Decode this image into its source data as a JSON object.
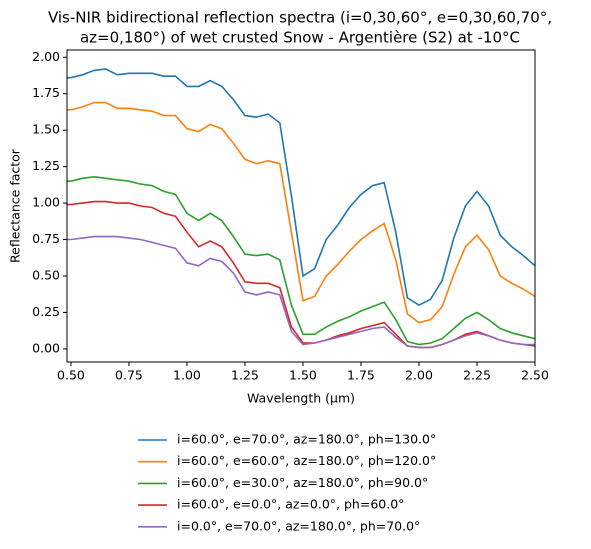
{
  "chart_data": {
    "type": "line",
    "title": [
      "Vis-NIR bidirectional reflection spectra (i=0,30,60°, e=0,30,60,70°,",
      "az=0,180°) of wet crusted Snow - Argentière (S2) at -10°C"
    ],
    "xlabel": "Wavelength (μm)",
    "ylabel": "Reflectance factor",
    "xlim": [
      0.483,
      2.5
    ],
    "ylim": [
      -0.09,
      2.05
    ],
    "xticks": [
      {
        "value": 0.5,
        "label": "0.50"
      },
      {
        "value": 0.75,
        "label": "0.75"
      },
      {
        "value": 1.0,
        "label": "1.00"
      },
      {
        "value": 1.25,
        "label": "1.25"
      },
      {
        "value": 1.5,
        "label": "1.50"
      },
      {
        "value": 1.75,
        "label": "1.75"
      },
      {
        "value": 2.0,
        "label": "2.00"
      },
      {
        "value": 2.25,
        "label": "2.25"
      },
      {
        "value": 2.5,
        "label": "2.50"
      }
    ],
    "yticks": [
      {
        "value": 0,
        "label": "0.00"
      },
      {
        "value": 0.25,
        "label": "0.25"
      },
      {
        "value": 0.5,
        "label": "0.50"
      },
      {
        "value": 0.75,
        "label": "0.75"
      },
      {
        "value": 1.0,
        "label": "1.00"
      },
      {
        "value": 1.25,
        "label": "1.25"
      },
      {
        "value": 1.5,
        "label": "1.50"
      },
      {
        "value": 1.75,
        "label": "1.75"
      },
      {
        "value": 2.0,
        "label": "2.00"
      }
    ],
    "x": [
      0.48,
      0.5,
      0.55,
      0.6,
      0.65,
      0.7,
      0.75,
      0.8,
      0.85,
      0.9,
      0.95,
      1.0,
      1.05,
      1.1,
      1.15,
      1.2,
      1.25,
      1.3,
      1.35,
      1.4,
      1.45,
      1.5,
      1.55,
      1.6,
      1.65,
      1.7,
      1.75,
      1.8,
      1.85,
      1.9,
      1.95,
      2.0,
      2.05,
      2.1,
      2.15,
      2.2,
      2.25,
      2.3,
      2.35,
      2.4,
      2.45,
      2.5
    ],
    "series": [
      {
        "name": "i=60.0°, e=70.0°, az=180.0°, ph=130.0°",
        "color": "#1f77b4",
        "values": [
          1.86,
          1.86,
          1.88,
          1.91,
          1.92,
          1.88,
          1.89,
          1.89,
          1.89,
          1.87,
          1.87,
          1.8,
          1.8,
          1.84,
          1.8,
          1.71,
          1.6,
          1.59,
          1.61,
          1.55,
          1.05,
          0.5,
          0.55,
          0.75,
          0.85,
          0.97,
          1.06,
          1.12,
          1.14,
          0.8,
          0.35,
          0.3,
          0.34,
          0.47,
          0.76,
          0.98,
          1.08,
          0.98,
          0.78,
          0.7,
          0.64,
          0.57
        ]
      },
      {
        "name": "i=60.0°, e=60.0°, az=180.0°, ph=120.0°",
        "color": "#ff7f0e",
        "values": [
          1.64,
          1.64,
          1.66,
          1.69,
          1.69,
          1.65,
          1.65,
          1.64,
          1.63,
          1.6,
          1.6,
          1.51,
          1.49,
          1.54,
          1.51,
          1.41,
          1.3,
          1.27,
          1.29,
          1.27,
          0.8,
          0.33,
          0.36,
          0.5,
          0.58,
          0.67,
          0.75,
          0.81,
          0.86,
          0.61,
          0.24,
          0.18,
          0.2,
          0.29,
          0.51,
          0.7,
          0.78,
          0.68,
          0.5,
          0.45,
          0.41,
          0.36
        ]
      },
      {
        "name": "i=60.0°, e=30.0°, az=180.0°, ph=90.0°",
        "color": "#2ca02c",
        "values": [
          1.15,
          1.15,
          1.17,
          1.18,
          1.17,
          1.16,
          1.15,
          1.13,
          1.12,
          1.08,
          1.06,
          0.93,
          0.88,
          0.93,
          0.88,
          0.77,
          0.65,
          0.64,
          0.65,
          0.61,
          0.3,
          0.1,
          0.1,
          0.15,
          0.19,
          0.22,
          0.26,
          0.29,
          0.32,
          0.2,
          0.05,
          0.03,
          0.04,
          0.07,
          0.14,
          0.21,
          0.25,
          0.2,
          0.14,
          0.11,
          0.09,
          0.07
        ]
      },
      {
        "name": "i=60.0°, e=0.0°, az=0.0°, ph=60.0°",
        "color": "#d62728",
        "values": [
          0.99,
          0.99,
          1.0,
          1.01,
          1.01,
          1.0,
          1.0,
          0.98,
          0.97,
          0.93,
          0.91,
          0.8,
          0.7,
          0.74,
          0.7,
          0.59,
          0.46,
          0.45,
          0.45,
          0.42,
          0.15,
          0.04,
          0.04,
          0.06,
          0.09,
          0.11,
          0.14,
          0.16,
          0.18,
          0.1,
          0.02,
          0.01,
          0.01,
          0.03,
          0.06,
          0.1,
          0.12,
          0.09,
          0.06,
          0.04,
          0.03,
          0.02
        ]
      },
      {
        "name": "i=0.0°, e=70.0°, az=180.0°, ph=70.0°",
        "color": "#9467bd",
        "values": [
          0.75,
          0.75,
          0.76,
          0.77,
          0.77,
          0.77,
          0.76,
          0.75,
          0.73,
          0.71,
          0.69,
          0.59,
          0.57,
          0.62,
          0.6,
          0.52,
          0.39,
          0.37,
          0.39,
          0.37,
          0.12,
          0.03,
          0.04,
          0.06,
          0.08,
          0.1,
          0.12,
          0.14,
          0.15,
          0.08,
          0.02,
          0.01,
          0.01,
          0.03,
          0.06,
          0.09,
          0.11,
          0.09,
          0.06,
          0.04,
          0.03,
          0.03
        ]
      }
    ]
  }
}
